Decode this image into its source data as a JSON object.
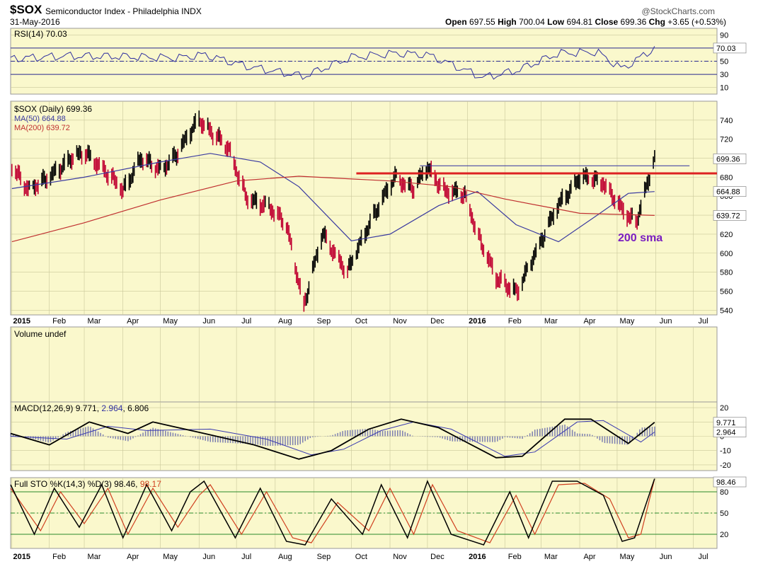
{
  "header": {
    "symbol": "$SOX",
    "name": "Semiconductor Index - Philadelphia",
    "exchange": "INDX",
    "date": "31-May-2016",
    "watermark": "@StockCharts.com",
    "open_label": "Open",
    "open": "697.55",
    "high_label": "High",
    "high": "700.04",
    "low_label": "Low",
    "low": "694.81",
    "close_label": "Close",
    "close": "699.36",
    "chg_label": "Chg",
    "chg": "+3.65 (+0.53%)"
  },
  "colors": {
    "panel_bg": "#faf8cc",
    "grid": "#c9c79a",
    "up": "#000000",
    "down": "#c00030",
    "ma50": "#3a3aa0",
    "ma200": "#c03030",
    "resistance": "#dd2222",
    "annotation": "#7a1ec0"
  },
  "chart_data": [
    {
      "type": "line",
      "title": "RSI(14) 70.03",
      "last_value": "70.03",
      "ylim": [
        0,
        100
      ],
      "yticks": [
        "90",
        "70",
        "50",
        "30",
        "10"
      ],
      "reference_lines": [
        30,
        50,
        70
      ],
      "series": [
        {
          "name": "RSI(14)",
          "x": [
            "2015-01-01",
            "2015-02-15",
            "2015-04-01",
            "2015-05-15",
            "2015-06-05",
            "2015-07-10",
            "2015-08-24",
            "2015-10-01",
            "2015-11-05",
            "2015-12-01",
            "2016-01-15",
            "2016-02-11",
            "2016-03-15",
            "2016-04-15",
            "2016-05-05",
            "2016-05-31"
          ],
          "values": [
            54,
            58,
            57,
            55,
            60,
            42,
            27,
            56,
            62,
            60,
            25,
            36,
            62,
            64,
            38,
            70
          ]
        }
      ]
    },
    {
      "type": "ohlc",
      "title": "$SOX (Daily) 699.36",
      "last_value": "699.36",
      "ylim": [
        535,
        760
      ],
      "yticks": [
        "740",
        "720",
        "700",
        "680",
        "660",
        "640",
        "620",
        "600",
        "580",
        "560",
        "540"
      ],
      "xticks": [
        "2015",
        "Feb",
        "Mar",
        "Apr",
        "May",
        "Jun",
        "Jul",
        "Aug",
        "Sep",
        "Oct",
        "Nov",
        "Dec",
        "2016",
        "Feb",
        "Mar",
        "Apr",
        "May",
        "Jun",
        "Jul"
      ],
      "series": [
        {
          "name": "$SOX (Daily)",
          "x": [
            "2015-01-02",
            "2015-01-15",
            "2015-02-02",
            "2015-02-18",
            "2015-03-02",
            "2015-03-16",
            "2015-04-01",
            "2015-04-15",
            "2015-05-01",
            "2015-05-15",
            "2015-06-01",
            "2015-06-05",
            "2015-06-25",
            "2015-07-10",
            "2015-07-27",
            "2015-08-10",
            "2015-08-24",
            "2015-09-08",
            "2015-09-28",
            "2015-10-15",
            "2015-11-05",
            "2015-11-20",
            "2015-12-01",
            "2015-12-15",
            "2015-12-31",
            "2016-01-13",
            "2016-01-25",
            "2016-02-11",
            "2016-02-25",
            "2016-03-15",
            "2016-04-01",
            "2016-04-20",
            "2016-05-05",
            "2016-05-16",
            "2016-05-31"
          ],
          "values": [
            690,
            668,
            680,
            700,
            705,
            690,
            665,
            700,
            688,
            705,
            742,
            735,
            710,
            655,
            650,
            630,
            545,
            620,
            580,
            630,
            680,
            668,
            690,
            665,
            662,
            610,
            575,
            558,
            600,
            650,
            680,
            675,
            645,
            632,
            699.36
          ]
        },
        {
          "name": "MA(50) 664.88",
          "x": [
            "2015-01-02",
            "2015-03-01",
            "2015-05-01",
            "2015-06-10",
            "2015-07-20",
            "2015-08-20",
            "2015-10-01",
            "2015-11-01",
            "2015-12-10",
            "2016-01-10",
            "2016-02-10",
            "2016-03-15",
            "2016-04-15",
            "2016-05-10",
            "2016-05-31"
          ],
          "values": [
            668,
            680,
            696,
            705,
            696,
            670,
            613,
            620,
            650,
            665,
            630,
            612,
            640,
            663,
            664.88
          ]
        },
        {
          "name": "MA(200) 639.72",
          "x": [
            "2015-01-02",
            "2015-03-01",
            "2015-05-01",
            "2015-07-01",
            "2015-08-20",
            "2015-11-01",
            "2015-12-20",
            "2016-02-01",
            "2016-04-01",
            "2016-05-31"
          ],
          "values": [
            612,
            632,
            656,
            676,
            681,
            676,
            670,
            657,
            642,
            639.72
          ]
        }
      ],
      "ma50_label": "MA(50) 664.88",
      "ma200_label": "MA(200) 639.72",
      "ma50_last": "664.88",
      "ma200_last": "639.72",
      "resistance_level": 684,
      "thin_line_level": 692,
      "annotation": "200 sma"
    },
    {
      "type": "bar",
      "title": "Volume undef"
    },
    {
      "type": "line",
      "title": "MACD(12,26,9)",
      "macd": "9.771",
      "signal": "2.964",
      "histogram": "6.806",
      "macd_last": "9.771",
      "signal_last": "2.964",
      "ylim": [
        -24,
        24
      ],
      "yticks": [
        "20",
        "10",
        "0",
        "-10",
        "-20"
      ],
      "series": [
        {
          "name": "MACD",
          "x": [
            "2015-01-01",
            "2015-02-01",
            "2015-03-05",
            "2015-04-05",
            "2015-04-25",
            "2015-06-05",
            "2015-07-15",
            "2015-08-20",
            "2015-09-15",
            "2015-10-15",
            "2015-11-10",
            "2015-12-10",
            "2016-01-25",
            "2016-02-15",
            "2016-03-20",
            "2016-04-10",
            "2016-05-10",
            "2016-05-31"
          ],
          "values": [
            2,
            -6,
            10,
            2,
            10,
            2,
            -6,
            -16,
            -10,
            5,
            12,
            6,
            -15,
            -14,
            12,
            12,
            -5,
            9.771
          ]
        },
        {
          "name": "Signal",
          "x": [
            "2015-01-01",
            "2015-02-15",
            "2015-03-20",
            "2015-04-20",
            "2015-06-10",
            "2015-07-25",
            "2015-08-30",
            "2015-09-25",
            "2015-10-25",
            "2015-11-20",
            "2015-12-20",
            "2016-02-01",
            "2016-02-25",
            "2016-03-30",
            "2016-04-20",
            "2016-05-20",
            "2016-05-31"
          ],
          "values": [
            0,
            -2,
            7,
            4,
            5,
            -2,
            -13,
            -9,
            4,
            10,
            5,
            -14,
            -11,
            10,
            11,
            -4,
            2.964
          ]
        }
      ]
    },
    {
      "type": "line",
      "title": "Full STO %K(14,3) %D(3)",
      "k": "98.46",
      "d": "98.17",
      "k_last": "98.46",
      "ylim": [
        0,
        100
      ],
      "yticks": [
        "80",
        "50",
        "20"
      ],
      "reference_lines": [
        20,
        50,
        80
      ],
      "series": [
        {
          "name": "%K",
          "x": [
            "2015-01-01",
            "2015-01-20",
            "2015-02-05",
            "2015-02-25",
            "2015-03-15",
            "2015-04-01",
            "2015-04-20",
            "2015-05-10",
            "2015-05-25",
            "2015-06-05",
            "2015-06-30",
            "2015-07-20",
            "2015-08-10",
            "2015-08-25",
            "2015-09-15",
            "2015-10-10",
            "2015-10-25",
            "2015-11-15",
            "2015-12-01",
            "2015-12-20",
            "2016-01-15",
            "2016-02-05",
            "2016-02-20",
            "2016-03-10",
            "2016-03-30",
            "2016-04-20",
            "2016-05-05",
            "2016-05-15",
            "2016-05-31"
          ],
          "values": [
            90,
            20,
            85,
            30,
            90,
            15,
            90,
            25,
            80,
            95,
            15,
            85,
            10,
            5,
            70,
            20,
            90,
            15,
            95,
            20,
            5,
            80,
            15,
            95,
            95,
            75,
            10,
            15,
            98.46
          ]
        },
        {
          "name": "%D",
          "x": [
            "2015-01-01",
            "2015-01-25",
            "2015-02-10",
            "2015-03-01",
            "2015-03-20",
            "2015-04-05",
            "2015-04-25",
            "2015-05-15",
            "2015-06-01",
            "2015-06-10",
            "2015-07-05",
            "2015-07-25",
            "2015-08-15",
            "2015-08-30",
            "2015-09-20",
            "2015-10-15",
            "2015-11-01",
            "2015-11-20",
            "2015-12-05",
            "2015-12-25",
            "2016-01-20",
            "2016-02-10",
            "2016-02-25",
            "2016-03-15",
            "2016-04-05",
            "2016-04-25",
            "2016-05-10",
            "2016-05-20",
            "2016-05-31"
          ],
          "values": [
            85,
            25,
            80,
            35,
            85,
            20,
            85,
            30,
            75,
            90,
            20,
            80,
            15,
            8,
            65,
            25,
            85,
            20,
            90,
            25,
            8,
            75,
            20,
            90,
            92,
            70,
            15,
            20,
            98.17
          ]
        }
      ]
    }
  ]
}
